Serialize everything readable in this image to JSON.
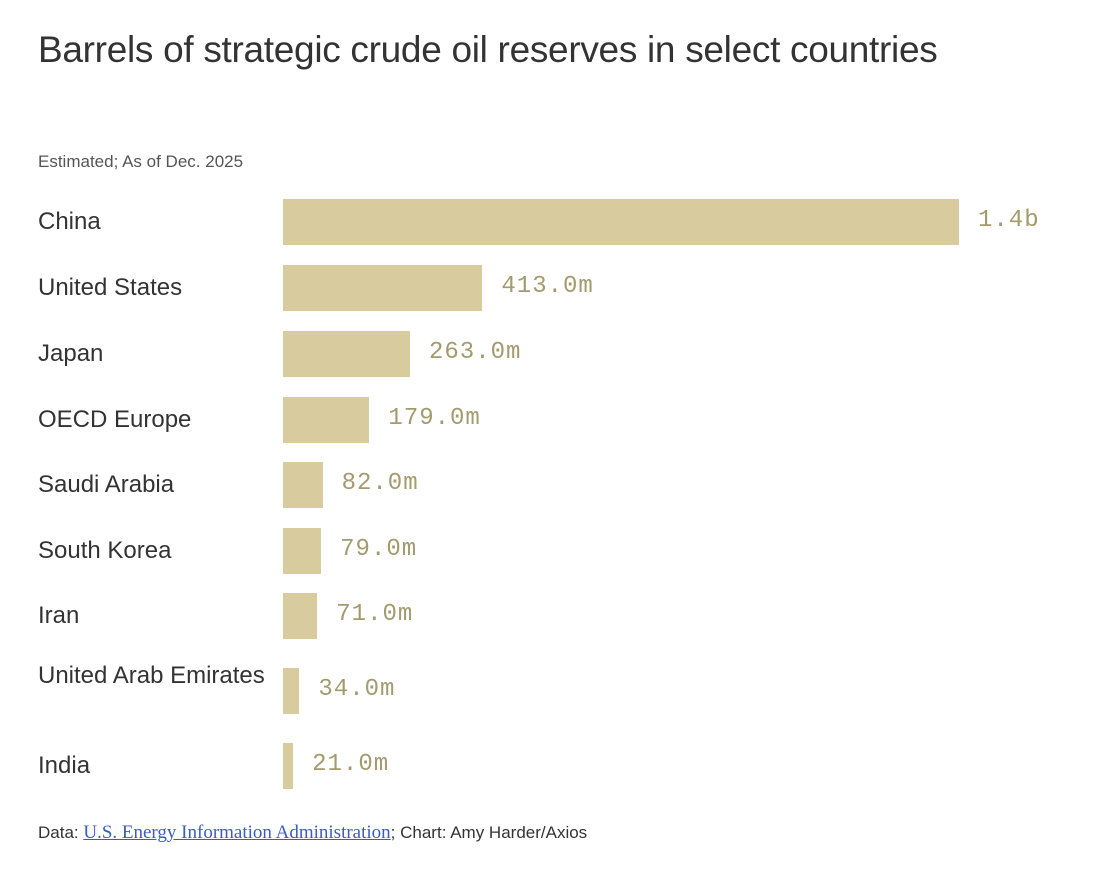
{
  "chart_data": {
    "type": "bar",
    "orientation": "horizontal",
    "title": "Barrels of strategic crude oil reserves in select countries",
    "subtitle": "Estimated; As of Dec. 2025",
    "categories": [
      "China",
      "United States",
      "Japan",
      "OECD Europe",
      "Saudi Arabia",
      "South Korea",
      "Iran",
      "United Arab Emirates",
      "India"
    ],
    "values": [
      1400,
      413,
      263,
      179,
      82,
      79,
      71,
      34,
      21
    ],
    "unit": "million barrels",
    "data_labels": [
      "1.4b",
      "413.0m",
      "263.0m",
      "179.0m",
      "82.0m",
      "79.0m",
      "71.0m",
      "34.0m",
      "21.0m"
    ],
    "bar_color": "#d8cc9f",
    "label_color": "#a39a6e",
    "grid": false,
    "axes_visible": false
  },
  "footer": {
    "data_prefix": "Data: ",
    "source_link": "U.S. Energy Information Administration",
    "suffix": "; Chart: Amy Harder/Axios",
    "link_color": "#3b5bc4"
  }
}
